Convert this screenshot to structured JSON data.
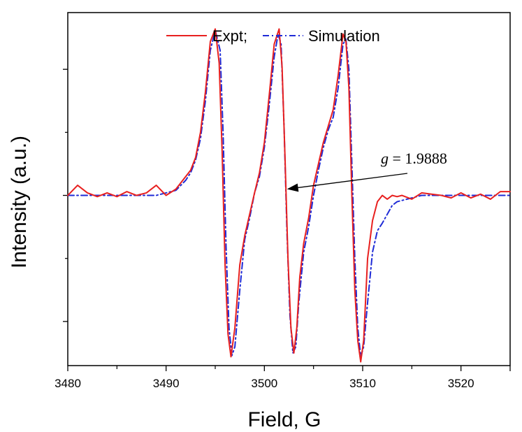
{
  "chart_data": {
    "type": "line",
    "title": "",
    "xlabel": "Field, G",
    "ylabel": "Intensity (a.u.)",
    "xlim": [
      3480,
      3525
    ],
    "ylim": [
      -1.35,
      1.45
    ],
    "xticks": [
      3480,
      3490,
      3500,
      3510,
      3520
    ],
    "xtick_labels": [
      "3480",
      "3490",
      "3500",
      "3510",
      "3520"
    ],
    "yticks_major": [
      -1.0,
      0.0,
      1.0
    ],
    "yticks_minor": [
      -1.5,
      -0.5,
      0.5,
      1.5
    ],
    "legend": {
      "placement": "top-center",
      "entries": [
        {
          "label": "Expt;",
          "color": "#e8201f",
          "style": "solid"
        },
        {
          "label": "Simulation",
          "color": "#1f2bd6",
          "style": "dash-dot"
        }
      ]
    },
    "annotation": {
      "italic_part": "g",
      "text_part": " = 1.9888",
      "arrow_to_x": 3502.3,
      "arrow_to_y": 0.05
    },
    "series": [
      {
        "name": "Expt",
        "color": "#e8201f",
        "style": "solid",
        "x": [
          3480,
          3481,
          3482,
          3483,
          3484,
          3485,
          3486,
          3487,
          3488,
          3489,
          3490,
          3491,
          3491.5,
          3492,
          3492.5,
          3493,
          3493.5,
          3494,
          3494.5,
          3495,
          3495.4,
          3495.7,
          3496.0,
          3496.3,
          3496.6,
          3497.0,
          3497.5,
          3498.0,
          3498.5,
          3499.0,
          3499.5,
          3500.0,
          3500.5,
          3501.0,
          3501.5,
          3501.8,
          3502.1,
          3502.4,
          3502.7,
          3503.0,
          3503.3,
          3503.6,
          3504.0,
          3504.5,
          3505.0,
          3505.5,
          3506.0,
          3506.5,
          3507.0,
          3507.5,
          3508.0,
          3508.3,
          3508.6,
          3508.9,
          3509.2,
          3509.5,
          3509.8,
          3510.1,
          3510.5,
          3511.0,
          3511.5,
          3512.0,
          3512.5,
          3513.0,
          3513.5,
          3514,
          3515,
          3516,
          3517,
          3518,
          3519,
          3520,
          3521,
          3522,
          3523,
          3524,
          3525
        ],
        "y": [
          0.0,
          0.08,
          0.02,
          -0.01,
          0.02,
          -0.01,
          0.03,
          0.0,
          0.02,
          0.08,
          0.0,
          0.05,
          0.1,
          0.15,
          0.2,
          0.3,
          0.5,
          0.82,
          1.22,
          1.32,
          1.05,
          0.35,
          -0.55,
          -1.1,
          -1.28,
          -1.05,
          -0.55,
          -0.32,
          -0.15,
          0.02,
          0.18,
          0.42,
          0.8,
          1.2,
          1.32,
          1.02,
          0.3,
          -0.5,
          -1.05,
          -1.25,
          -1.05,
          -0.65,
          -0.38,
          -0.18,
          0.08,
          0.25,
          0.42,
          0.55,
          0.68,
          0.95,
          1.28,
          1.22,
          0.85,
          0.0,
          -0.75,
          -1.15,
          -1.32,
          -1.15,
          -0.5,
          -0.2,
          -0.05,
          0.0,
          -0.03,
          0.0,
          -0.01,
          0.0,
          -0.03,
          0.02,
          0.01,
          0.0,
          -0.02,
          0.02,
          -0.02,
          0.01,
          -0.03,
          0.03,
          0.03
        ]
      },
      {
        "name": "Simulation",
        "color": "#1f2bd6",
        "style": "dash-dot",
        "x": [
          3480,
          3485,
          3488,
          3489,
          3490,
          3491,
          3491.5,
          3492,
          3492.5,
          3493,
          3493.5,
          3494,
          3494.5,
          3495,
          3495.5,
          3495.8,
          3496.1,
          3496.4,
          3496.7,
          3497.0,
          3497.5,
          3498.0,
          3498.5,
          3499.0,
          3499.5,
          3500.0,
          3500.5,
          3501.0,
          3501.4,
          3501.7,
          3502.0,
          3502.3,
          3502.6,
          3502.9,
          3503.2,
          3503.5,
          3504.0,
          3504.5,
          3505.0,
          3505.5,
          3506.0,
          3506.5,
          3507.0,
          3507.5,
          3508.0,
          3508.3,
          3508.6,
          3508.9,
          3509.2,
          3509.5,
          3509.8,
          3510.1,
          3510.5,
          3511.0,
          3511.5,
          3512.0,
          3512.5,
          3513.0,
          3513.5,
          3514,
          3515,
          3516,
          3517,
          3518,
          3520,
          3525
        ],
        "y": [
          0.0,
          0.0,
          0.0,
          0.0,
          0.02,
          0.04,
          0.08,
          0.12,
          0.18,
          0.28,
          0.45,
          0.75,
          1.15,
          1.31,
          1.15,
          0.5,
          -0.4,
          -1.05,
          -1.27,
          -1.2,
          -0.75,
          -0.35,
          -0.18,
          0.02,
          0.15,
          0.38,
          0.72,
          1.1,
          1.28,
          1.2,
          0.55,
          -0.3,
          -0.95,
          -1.25,
          -1.2,
          -0.85,
          -0.45,
          -0.25,
          0.0,
          0.2,
          0.38,
          0.52,
          0.62,
          0.85,
          1.2,
          1.24,
          1.0,
          0.25,
          -0.5,
          -1.05,
          -1.28,
          -1.2,
          -0.85,
          -0.45,
          -0.28,
          -0.22,
          -0.15,
          -0.08,
          -0.05,
          -0.04,
          -0.02,
          0.0,
          0.0,
          0.0,
          0.0,
          0.0
        ]
      }
    ]
  }
}
